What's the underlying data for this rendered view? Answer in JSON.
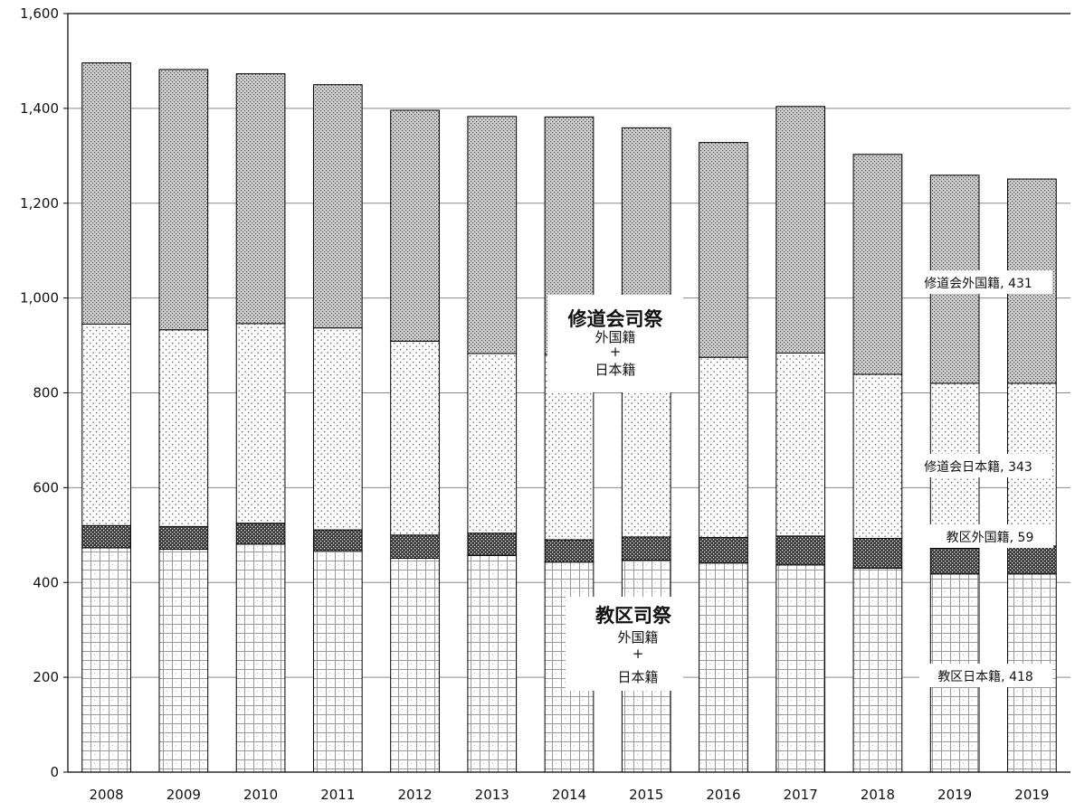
{
  "chart_data": {
    "type": "bar",
    "stacked": true,
    "categories": [
      "2008",
      "2009",
      "2010",
      "2011",
      "2012",
      "2013",
      "2014",
      "2015",
      "2016",
      "2017",
      "2018",
      "2019",
      "2019"
    ],
    "series": [
      {
        "key": "parish_jp",
        "name": "教区日本籍",
        "values": [
          473,
          470,
          481,
          467,
          451,
          457,
          443,
          447,
          441,
          437,
          430,
          418,
          418
        ]
      },
      {
        "key": "parish_fr",
        "name": "教区外国籍",
        "values": [
          47,
          48,
          44,
          44,
          49,
          47,
          47,
          49,
          54,
          61,
          63,
          54,
          59
        ]
      },
      {
        "key": "order_jp",
        "name": "修道会日本籍",
        "values": [
          425,
          415,
          421,
          426,
          409,
          379,
          391,
          384,
          380,
          386,
          346,
          348,
          343
        ]
      },
      {
        "key": "order_fr",
        "name": "修道会外国籍",
        "values": [
          551,
          549,
          527,
          513,
          487,
          500,
          501,
          479,
          453,
          520,
          464,
          439,
          431
        ]
      }
    ],
    "ylim": [
      0,
      1600
    ],
    "yticks": [
      0,
      200,
      400,
      600,
      800,
      1000,
      1200,
      1400,
      1600
    ],
    "ytick_labels": [
      "0",
      "200",
      "400",
      "600",
      "800",
      "1,000",
      "1,200",
      "1,400",
      "1,600"
    ],
    "grid": true,
    "series_labels": [
      {
        "key": "order_fr",
        "text": "修道会外国籍, 431"
      },
      {
        "key": "order_jp",
        "text": "修道会日本籍, 343"
      },
      {
        "key": "parish_fr",
        "text": "教区外国籍, 59"
      },
      {
        "key": "parish_jp",
        "text": "教区日本籍, 418"
      }
    ],
    "annotations": [
      {
        "key": "order",
        "title": "修道会司祭",
        "line1": "外国籍",
        "line2": "+",
        "line3": "日本籍"
      },
      {
        "key": "parish",
        "title": "教区司祭",
        "line1": "外国籍",
        "line2": "+",
        "line3": "日本籍"
      }
    ]
  }
}
